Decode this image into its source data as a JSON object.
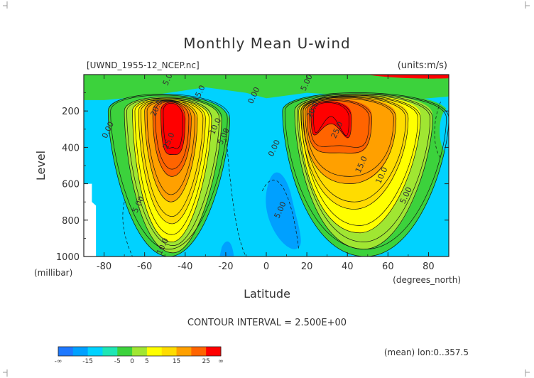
{
  "chart_data": {
    "type": "heatmap",
    "subtype": "filled-contour",
    "title": "Monthly Mean U-wind",
    "file_label": "[UWND_1955-12_NCEP.nc]",
    "units_label": "(units:m/s)",
    "xlabel": "Latitude",
    "x_units": "(degrees_north)",
    "ylabel": "Level",
    "y_units": "(millibar)",
    "xlim": [
      -90,
      90
    ],
    "ylim": [
      1000,
      0
    ],
    "x_ticks": [
      -80,
      -60,
      -40,
      -20,
      0,
      20,
      40,
      60,
      80
    ],
    "y_ticks": [
      200,
      400,
      600,
      800,
      1000
    ],
    "contour_interval_text": "CONTOUR INTERVAL = 2.500E+00",
    "contour_interval": 2.5,
    "footer_note": "(mean) lon:0..357.5",
    "colorbar": {
      "tick_labels": [
        "-∞",
        "-15",
        "-5",
        "0",
        "5",
        "15",
        "25",
        "∞"
      ],
      "colors": [
        "#1e78ff",
        "#00a0ff",
        "#00d2ff",
        "#1ee6b4",
        "#3cd23c",
        "#a0e632",
        "#ffff00",
        "#ffdc00",
        "#ffa000",
        "#ff6400",
        "#ff0000"
      ]
    },
    "contour_labels": [
      {
        "text": "5.00",
        "lat": -47,
        "lev": 20
      },
      {
        "text": "15.0",
        "lat": -32,
        "lev": 110
      },
      {
        "text": "20.0",
        "lat": -53,
        "lev": 190
      },
      {
        "text": "25.0",
        "lat": -47,
        "lev": 370
      },
      {
        "text": "10.0",
        "lat": -24,
        "lev": 290
      },
      {
        "text": "5.00",
        "lat": -20,
        "lev": 345
      },
      {
        "text": "0.00",
        "lat": -77,
        "lev": 310
      },
      {
        "text": "0.00",
        "lat": -5,
        "lev": 120
      },
      {
        "text": "0.00",
        "lat": 5,
        "lev": 410
      },
      {
        "text": "5.00",
        "lat": 21,
        "lev": 50
      },
      {
        "text": "20.0",
        "lat": 24,
        "lev": 200
      },
      {
        "text": "25.0",
        "lat": 36,
        "lev": 310
      },
      {
        "text": "15.0",
        "lat": 48,
        "lev": 500
      },
      {
        "text": "10.0",
        "lat": 58,
        "lev": 560
      },
      {
        "text": "5.00",
        "lat": 70,
        "lev": 670
      },
      {
        "text": "0.00",
        "lat": 91,
        "lev": 320
      },
      {
        "text": "5.00",
        "lat": -62,
        "lev": 720
      },
      {
        "text": "10.0",
        "lat": -50,
        "lev": 950
      },
      {
        "text": "5.00",
        "lat": 8,
        "lev": 750
      }
    ]
  }
}
